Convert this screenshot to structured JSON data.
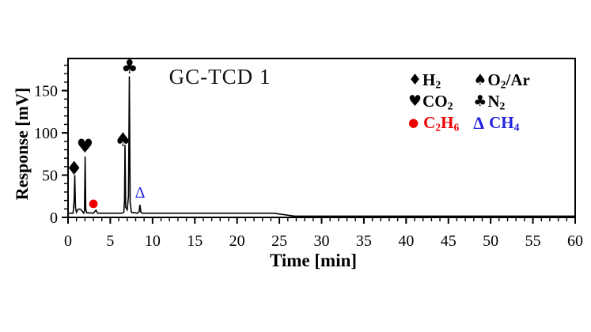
{
  "figure": {
    "background": "#ffffff",
    "axis_color": "#000000",
    "trace_color": "#000000"
  },
  "chart_data": {
    "type": "line",
    "title": "GC-TCD 1",
    "xlabel": "Time [min]",
    "ylabel": "Response [mV]",
    "xlim": [
      0,
      60
    ],
    "ylim": [
      0,
      188
    ],
    "x_major_ticks": [
      0,
      5,
      10,
      15,
      20,
      25,
      30,
      35,
      40,
      45,
      50,
      55,
      60
    ],
    "x_minor_step": 1,
    "y_major_ticks": [
      0,
      50,
      100,
      150
    ],
    "y_minor_step": 10,
    "grid": false,
    "legend_position": "upper right",
    "trace": [
      [
        0,
        5
      ],
      [
        0.6,
        5
      ],
      [
        0.72,
        20
      ],
      [
        0.8,
        50
      ],
      [
        0.88,
        12
      ],
      [
        1.0,
        6
      ],
      [
        1.15,
        9
      ],
      [
        1.3,
        10
      ],
      [
        1.5,
        9.5
      ],
      [
        1.7,
        7
      ],
      [
        1.85,
        5
      ],
      [
        1.95,
        8
      ],
      [
        2.02,
        72
      ],
      [
        2.1,
        10
      ],
      [
        2.2,
        5.5
      ],
      [
        3.0,
        5
      ],
      [
        3.3,
        8.5
      ],
      [
        3.5,
        5
      ],
      [
        6.3,
        5
      ],
      [
        6.6,
        6
      ],
      [
        6.68,
        20
      ],
      [
        6.74,
        86
      ],
      [
        6.82,
        12
      ],
      [
        7.0,
        9
      ],
      [
        7.15,
        25
      ],
      [
        7.25,
        167
      ],
      [
        7.35,
        18
      ],
      [
        7.5,
        6
      ],
      [
        8.2,
        5
      ],
      [
        8.42,
        7
      ],
      [
        8.5,
        15
      ],
      [
        8.62,
        6
      ],
      [
        8.8,
        5
      ],
      [
        24.3,
        5
      ],
      [
        26.8,
        1.5
      ],
      [
        60,
        1.5
      ]
    ],
    "baseline": {
      "level_mV": 5,
      "step_start_min": 24.3,
      "step_end_min": 26.8,
      "level_after_mV": 1.5
    },
    "peaks": [
      {
        "species": "H2",
        "label": "H₂",
        "symbol": "♦",
        "color": "#000000",
        "retention_time_min": 0.8,
        "peak_height_mV": 50,
        "marker": {
          "t": 0.72,
          "mV": 58
        }
      },
      {
        "species": "CO2",
        "label": "CO₂",
        "symbol": "♥",
        "color": "#000000",
        "retention_time_min": 2.0,
        "peak_height_mV": 72,
        "marker": {
          "t": 2.0,
          "mV": 84
        }
      },
      {
        "species": "C2H6",
        "label": "C₂H₆",
        "symbol": "●",
        "color": "#ee0000",
        "retention_time_min": 3.3,
        "peak_height_mV": 8.5,
        "marker": {
          "t": 3.0,
          "mV": 16
        }
      },
      {
        "species": "O2/Ar",
        "label": "O₂/Ar",
        "symbol": "♠",
        "color": "#000000",
        "retention_time_min": 6.74,
        "peak_height_mV": 86,
        "marker": {
          "t": 6.5,
          "mV": 92
        }
      },
      {
        "species": "N2",
        "label": "N₂",
        "symbol": "♣",
        "color": "#000000",
        "retention_time_min": 7.25,
        "peak_height_mV": 167,
        "marker": {
          "t": 7.28,
          "mV": 178
        }
      },
      {
        "species": "CH4",
        "label": "CH₄",
        "symbol": "Δ",
        "color": "#2222dd",
        "retention_time_min": 8.5,
        "peak_height_mV": 15,
        "marker": {
          "t": 8.52,
          "mV": 30
        }
      }
    ],
    "legend_columns": [
      [
        {
          "symbol": "♦",
          "label": "H₂",
          "color": "#000000",
          "symbol_class": "suit"
        },
        {
          "symbol": "♥",
          "label": "CO₂",
          "color": "#000000",
          "symbol_class": "suit"
        },
        {
          "symbol": "●",
          "label": "C₂H₆",
          "color": "#ee0000",
          "symbol_class": "dot"
        }
      ],
      [
        {
          "symbol": "♠",
          "label": "O₂/Ar",
          "color": "#000000",
          "symbol_class": "suit"
        },
        {
          "symbol": "♣",
          "label": "N₂",
          "color": "#000000",
          "symbol_class": "suit"
        },
        {
          "symbol": "Δ",
          "label": "CH₄",
          "color": "#2222dd",
          "symbol_class": "tri"
        }
      ]
    ]
  }
}
